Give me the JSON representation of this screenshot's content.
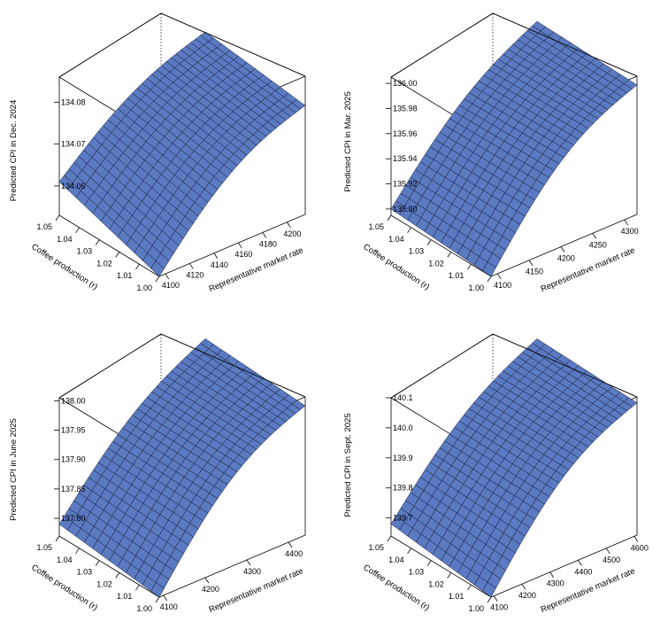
{
  "figure": {
    "panel_count": 4,
    "surface_color": "#5a7ac2",
    "mesh_color": "#0b1024",
    "box_color": "#000000"
  },
  "chart_data": [
    {
      "type": "surface3d",
      "zlabel": "Predicted CPI in Dec. 2024",
      "xlabel": "Coffee production (r)",
      "ylabel": "Representative market rate",
      "x_ticks": [
        "1.00",
        "1.01",
        "1.02",
        "1.03",
        "1.04",
        "1.05"
      ],
      "y_ticks": [
        "4100",
        "4120",
        "4140",
        "4160",
        "4180",
        "4200"
      ],
      "z_ticks": [
        "134.06",
        "134.07",
        "134.08"
      ],
      "xlim": [
        1.0,
        1.05
      ],
      "ylim": [
        4095,
        4215
      ],
      "zlim": [
        134.053,
        134.086
      ],
      "corner_values": {
        "x1.00_ylow": 134.053,
        "x1.05_ylow": 134.061,
        "x1.00_yhigh": 134.079,
        "x1.05_yhigh": 134.082
      }
    },
    {
      "type": "surface3d",
      "zlabel": "Predicted CPI in Mar. 2025",
      "xlabel": "Coffee production (r)",
      "ylabel": "Representative market rate",
      "x_ticks": [
        "1.00",
        "1.01",
        "1.02",
        "1.03",
        "1.04",
        "1.05"
      ],
      "y_ticks": [
        "4100",
        "4150",
        "4200",
        "4250",
        "4300"
      ],
      "z_ticks": [
        "135.90",
        "135.92",
        "135.94",
        "135.96",
        "135.98",
        "136.00"
      ],
      "xlim": [
        1.0,
        1.05
      ],
      "ylim": [
        4090,
        4320
      ],
      "zlim": [
        135.895,
        136.005
      ],
      "corner_values": {
        "x1.00_ylow": 135.895,
        "x1.05_ylow": 135.9,
        "x1.00_yhigh": 135.998,
        "x1.05_yhigh": 136.0
      }
    },
    {
      "type": "surface3d",
      "zlabel": "Predicted CPI in June 2025",
      "xlabel": "Coffee production (r)",
      "ylabel": "Representative market rate",
      "x_ticks": [
        "1.00",
        "1.01",
        "1.02",
        "1.03",
        "1.04",
        "1.05"
      ],
      "y_ticks": [
        "4100",
        "4200",
        "4300",
        "4400"
      ],
      "z_ticks": [
        "137.80",
        "137.85",
        "137.90",
        "137.95",
        "138.00"
      ],
      "xlim": [
        1.0,
        1.05
      ],
      "ylim": [
        4090,
        4440
      ],
      "zlim": [
        137.77,
        138.005
      ],
      "corner_values": {
        "x1.00_ylow": 137.77,
        "x1.05_ylow": 137.79,
        "x1.00_yhigh": 137.99,
        "x1.05_yhigh": 138.0
      }
    },
    {
      "type": "surface3d",
      "zlabel": "Predicted CPI in Sept. 2025",
      "xlabel": "Coffee production (r)",
      "ylabel": "Representative market rate",
      "x_ticks": [
        "1.00",
        "1.01",
        "1.02",
        "1.03",
        "1.04",
        "1.05"
      ],
      "y_ticks": [
        "4100",
        "4200",
        "4300",
        "4400",
        "4500",
        "4600"
      ],
      "z_ticks": [
        "139.7",
        "139.8",
        "139.9",
        "140.0",
        "140.1"
      ],
      "xlim": [
        1.0,
        1.05
      ],
      "ylim": [
        4090,
        4610
      ],
      "zlim": [
        139.64,
        140.1
      ],
      "corner_values": {
        "x1.00_ylow": 139.64,
        "x1.05_ylow": 139.68,
        "x1.00_yhigh": 140.08,
        "x1.05_yhigh": 140.09
      }
    }
  ]
}
